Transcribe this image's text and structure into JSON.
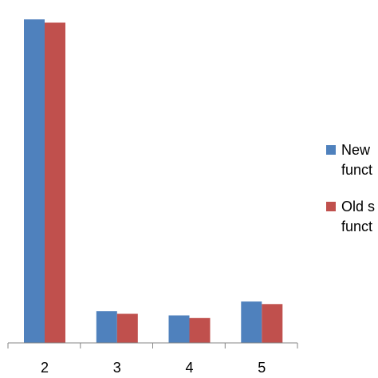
{
  "chart_data": {
    "type": "bar",
    "title": "",
    "xlabel": "",
    "ylabel": "",
    "categories": [
      "2",
      "3",
      "4",
      "5"
    ],
    "series": [
      {
        "name_lines": [
          "New",
          "funct"
        ],
        "color": "#4F81BD",
        "values": [
          1.0,
          0.098,
          0.085,
          0.128
        ]
      },
      {
        "name_lines": [
          "Old s",
          "funct"
        ],
        "color": "#C0504D",
        "values": [
          0.99,
          0.09,
          0.077,
          0.12
        ]
      }
    ],
    "ylim": [
      0,
      1.06
    ],
    "grid": false,
    "legend_position": "right"
  }
}
